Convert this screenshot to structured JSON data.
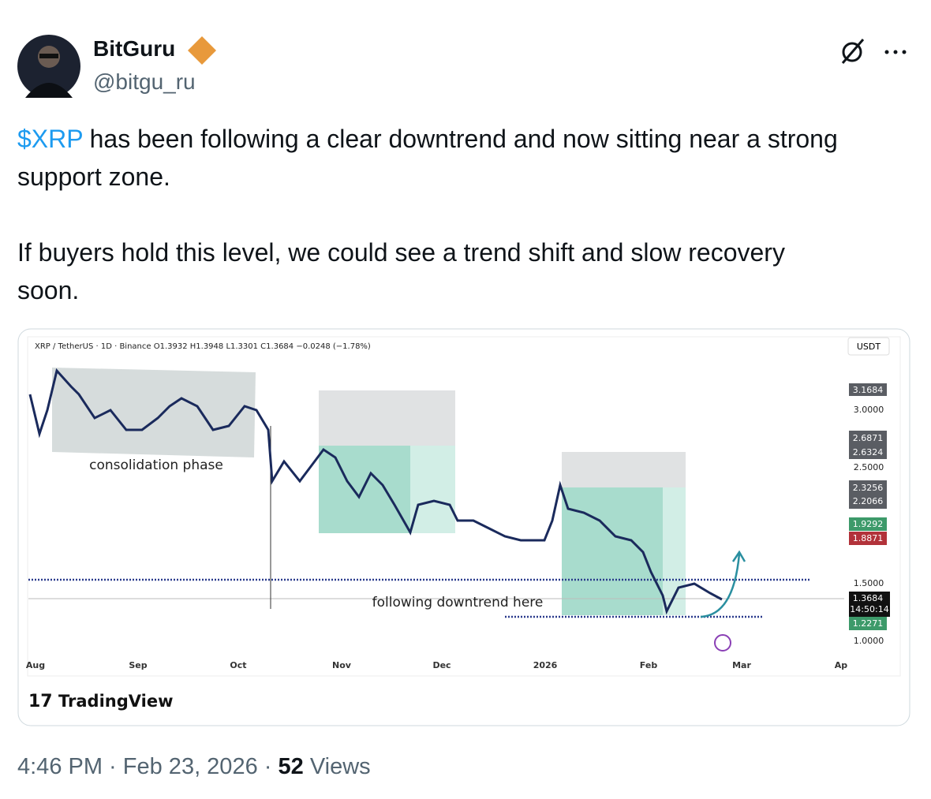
{
  "author": {
    "name": "BitGuru",
    "handle": "@bitgu_ru"
  },
  "post": {
    "paragraphs": [
      {
        "cashtag": "$XRP",
        "text": "has been following a clear downtrend and now sitting near a strong support zone."
      },
      {
        "text": "If buyers hold this level, we could see a trend shift and slow recovery soon."
      }
    ],
    "time": "4:46 PM",
    "date": "Feb 23, 2026",
    "views": "52",
    "views_label": "Views"
  },
  "chart_image": {
    "header": "XRP / TetherUS · 1D · Binance  O1.3932  H1.3948  L1.3301  C1.3684  −0.0248 (−1.78%)",
    "currency": "USDT",
    "price_labels": [
      "3.1684",
      "3.0000",
      "2.6871",
      "2.6324",
      "2.5000",
      "2.3256",
      "2.2066",
      "1.9292",
      "1.8871",
      "1.5000",
      "1.3684",
      "14:50:14",
      "1.2271",
      "1.0000"
    ],
    "months": [
      "Aug",
      "Sep",
      "Oct",
      "Nov",
      "Dec",
      "2026",
      "Feb",
      "Mar",
      "Ap"
    ],
    "annotations": [
      "consolidation phase",
      "following downtrend here"
    ],
    "brand": "TradingView"
  }
}
